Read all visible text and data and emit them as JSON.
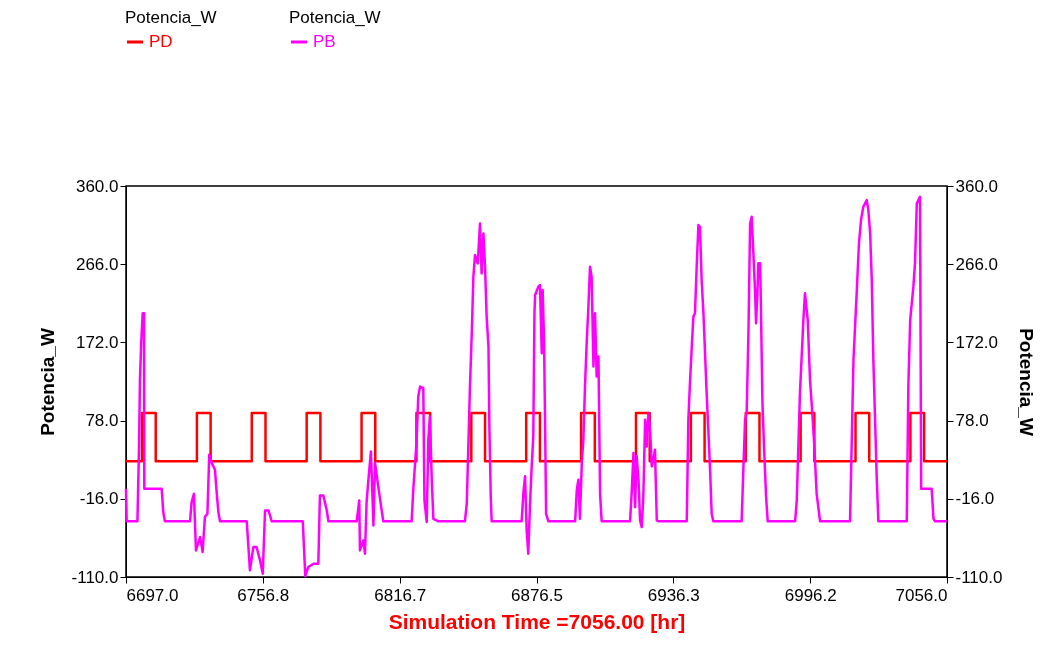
{
  "chart_data": {
    "type": "line",
    "xlabel": "Simulation Time =7056.00 [hr]",
    "ylabel": "Potencia_W",
    "y2label": "Potencia_W",
    "legend_title": "Potencia_W",
    "legend": "top left",
    "xlim": [
      6697.0,
      7056.0
    ],
    "xticks": [
      {
        "value": 6697.0,
        "label": "6697.0"
      },
      {
        "value": 6756.8,
        "label": "6756.8"
      },
      {
        "value": 6816.7,
        "label": "6816.7"
      },
      {
        "value": 6876.5,
        "label": "6876.5"
      },
      {
        "value": 6936.3,
        "label": "6936.3"
      },
      {
        "value": 6996.2,
        "label": "6996.2"
      },
      {
        "value": 7056.0,
        "label": "7056.0"
      }
    ],
    "ylim": [
      -110,
      360
    ],
    "yticks": [
      {
        "value": -110,
        "label": "-110.0"
      },
      {
        "value": -16,
        "label": "-16.0"
      },
      {
        "value": 78,
        "label": "78.0"
      },
      {
        "value": 172,
        "label": "172.0"
      },
      {
        "value": 266,
        "label": "266.0"
      },
      {
        "value": 360,
        "label": "360.0"
      }
    ],
    "y2lim": [
      -110,
      360
    ],
    "y2ticks": [
      {
        "value": -110,
        "label": "-110.0"
      },
      {
        "value": -16,
        "label": "-16.0"
      },
      {
        "value": 78,
        "label": "78.0"
      },
      {
        "value": 172,
        "label": "172.0"
      },
      {
        "value": 266,
        "label": "266.0"
      },
      {
        "value": 360,
        "label": "360.0"
      }
    ],
    "series": [
      {
        "name": "PD",
        "type": "step",
        "color": "#ff0000",
        "x": [
          6697,
          6704,
          6710,
          6728,
          6734,
          6752,
          6758,
          6776,
          6782,
          6800,
          6806,
          6824,
          6830,
          6848,
          6854,
          6872,
          6878,
          6896,
          6902,
          6920,
          6926,
          6944,
          6950,
          6968,
          6974,
          6992,
          6998,
          7016,
          7022,
          7040,
          7046,
          7056
        ],
        "values": [
          29,
          87,
          29,
          87,
          29,
          87,
          29,
          87,
          29,
          87,
          29,
          87,
          29,
          87,
          29,
          87,
          29,
          87,
          29,
          87,
          29,
          87,
          29,
          87,
          29,
          87,
          29,
          87,
          29,
          87,
          29,
          29
        ]
      },
      {
        "name": "PB",
        "type": "line",
        "axis": "y2",
        "color": "#ff00ff",
        "x": [
          6697.0,
          6697.3,
          6702.0,
          6702.7,
          6703.1,
          6703.7,
          6704.3,
          6704.9,
          6705.0,
          6712.6,
          6713.3,
          6714.0,
          6725.0,
          6725.7,
          6726.7,
          6727.6,
          6729.4,
          6730.5,
          6731.5,
          6732.6,
          6733.4,
          6734.5,
          6735.9,
          6736.7,
          6737.4,
          6738.1,
          6749.8,
          6751.2,
          6752.7,
          6754.1,
          6755.6,
          6756.8,
          6757.8,
          6759.3,
          6760.7,
          6774.3,
          6775.4,
          6776.7,
          6779.0,
          6781.1,
          6781.8,
          6783.3,
          6784.8,
          6785.5,
          6797.9,
          6799.0,
          6799.3,
          6800.8,
          6801.5,
          6802.2,
          6803.0,
          6804.1,
          6805.2,
          6805.9,
          6807.3,
          6808.8,
          6809.5,
          6821.9,
          6822.6,
          6824.1,
          6824.8,
          6825.6,
          6827.0,
          6827.5,
          6828.5,
          6829.2,
          6829.9,
          6830.7,
          6831.4,
          6833.6,
          6845.2,
          6846.0,
          6846.7,
          6847.4,
          6848.2,
          6848.9,
          6849.6,
          6850.8,
          6851.8,
          6852.5,
          6853.3,
          6854.0,
          6854.7,
          6855.5,
          6855.9,
          6856.5,
          6856.9,
          6870.0,
          6870.8,
          6871.5,
          6872.2,
          6872.9,
          6873.7,
          6874.4,
          6875.1,
          6875.6,
          6875.9,
          6877.3,
          6878.0,
          6878.8,
          6879.2,
          6879.8,
          6880.2,
          6880.7,
          6881.7,
          6893.4,
          6894.1,
          6894.8,
          6895.5,
          6896.3,
          6897.0,
          6897.7,
          6898.5,
          6899.2,
          6899.9,
          6900.6,
          6901.4,
          6902.1,
          6902.8,
          6903.6,
          6904.3,
          6905.0,
          6917.4,
          6918.1,
          6918.9,
          6919.6,
          6920.3,
          6921.1,
          6921.8,
          6922.5,
          6923.2,
          6924.0,
          6924.7,
          6925.4,
          6926.2,
          6926.9,
          6927.6,
          6928.3,
          6929.1,
          6929.8,
          6942.2,
          6942.9,
          6943.6,
          6944.4,
          6945.1,
          6945.8,
          6946.6,
          6947.3,
          6948.0,
          6948.7,
          6949.5,
          6950.2,
          6950.9,
          6951.7,
          6952.4,
          6953.1,
          6953.8,
          6966.2,
          6967.0,
          6967.7,
          6968.4,
          6969.2,
          6969.9,
          6970.6,
          6971.3,
          6972.1,
          6972.5,
          6973.1,
          6973.5,
          6974.3,
          6974.7,
          6975.3,
          6976.1,
          6976.9,
          6977.6,
          6989.6,
          6990.3,
          6991.0,
          6991.7,
          6993.2,
          6993.9,
          6995.1,
          6996.1,
          6997.1,
          6998.0,
          6999.0,
          7000.5,
          7013.6,
          7014.3,
          7015.1,
          7016.5,
          7017.5,
          7018.4,
          7019.4,
          7020.9,
          7021.6,
          7022.4,
          7023.1,
          7023.8,
          7025.3,
          7026.0,
          7038.4,
          7039.1,
          7039.9,
          7041.3,
          7042.0,
          7042.8,
          7043.5,
          7044.2,
          7044.7,
          7049.3,
          7050.1,
          7050.8,
          7056.0
        ],
        "values": [
          -4,
          -43,
          -43,
          47,
          127,
          175,
          207,
          207,
          -4,
          -4,
          -32,
          -43,
          -43,
          -20,
          -10,
          -78,
          -62,
          -80,
          -38,
          -34,
          37,
          27,
          19,
          -10,
          -32,
          -43,
          -43,
          -102,
          -74,
          -74,
          -90,
          -106,
          -30,
          -30,
          -43,
          -43,
          -109,
          -98,
          -94,
          -94,
          -12,
          -12,
          -30,
          -43,
          -43,
          -18,
          -78,
          -66,
          -82,
          -20,
          7,
          41,
          -48,
          27,
          -1,
          -30,
          -43,
          -43,
          -6,
          55,
          107,
          119,
          117,
          -18,
          -44,
          55,
          83,
          7,
          -40,
          -43,
          -43,
          -22,
          47,
          119,
          183,
          251,
          277,
          267,
          315,
          255,
          303,
          263,
          203,
          167,
          71,
          -14,
          -43,
          -43,
          -8,
          11,
          -54,
          -82,
          -20,
          23,
          59,
          207,
          229,
          239,
          241,
          159,
          235,
          175,
          87,
          -34,
          -43,
          -43,
          -6,
          7,
          -40,
          27,
          55,
          119,
          175,
          215,
          263,
          251,
          143,
          207,
          131,
          155,
          -10,
          -43,
          -43,
          -10,
          39,
          -26,
          35,
          7,
          -42,
          -50,
          -14,
          79,
          47,
          87,
          67,
          23,
          31,
          43,
          -42,
          -43,
          -43,
          79,
          123,
          167,
          203,
          207,
          267,
          313,
          311,
          247,
          207,
          159,
          111,
          63,
          19,
          -34,
          -43,
          -43,
          23,
          79,
          87,
          187,
          315,
          323,
          281,
          231,
          195,
          231,
          267,
          267,
          203,
          99,
          39,
          -14,
          -43,
          -43,
          -18,
          47,
          111,
          199,
          231,
          199,
          127,
          87,
          47,
          -10,
          -43,
          -43,
          47,
          151,
          231,
          291,
          319,
          335,
          343,
          331,
          303,
          247,
          151,
          7,
          -43,
          -43,
          119,
          199,
          239,
          267,
          339,
          343,
          347,
          -4,
          -4,
          -40,
          -43,
          -43
        ]
      }
    ]
  }
}
